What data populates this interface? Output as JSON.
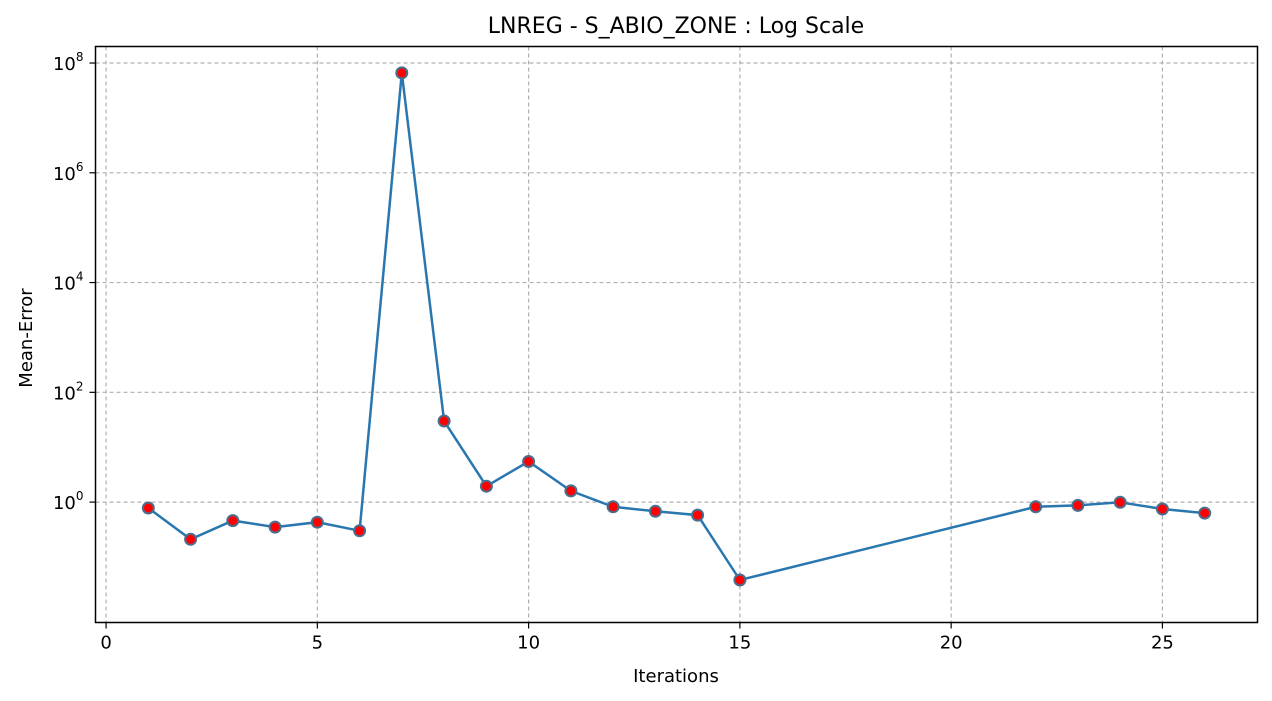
{
  "chart_data": {
    "type": "line",
    "title": "LNREG - S_ABIO_ZONE : Log Scale",
    "xlabel": "Iterations",
    "ylabel": "Mean-Error",
    "yscale": "log",
    "grid": true,
    "xlim": [
      -0.25,
      27.25
    ],
    "ylim": [
      0.0064,
      200000000
    ],
    "x_ticks": [
      {
        "value": 0,
        "label": "0"
      },
      {
        "value": 5,
        "label": "5"
      },
      {
        "value": 10,
        "label": "10"
      },
      {
        "value": 15,
        "label": "15"
      },
      {
        "value": 20,
        "label": "20"
      },
      {
        "value": 25,
        "label": "25"
      }
    ],
    "y_ticks": [
      {
        "value": 1,
        "base": "10",
        "exp": "0"
      },
      {
        "value": 100,
        "base": "10",
        "exp": "2"
      },
      {
        "value": 10000,
        "base": "10",
        "exp": "4"
      },
      {
        "value": 1000000,
        "base": "10",
        "exp": "6"
      },
      {
        "value": 100000000,
        "base": "10",
        "exp": "8"
      }
    ],
    "colors": {
      "line": "#2a77b0",
      "marker_fill": "#ff0000",
      "marker_edge": "#4a6e8e"
    },
    "series": [
      {
        "x": [
          1,
          2,
          3,
          4,
          5,
          6,
          7,
          8,
          9,
          10,
          11,
          12,
          13,
          14,
          15,
          22,
          23,
          24,
          25,
          26
        ],
        "y": [
          0.78,
          0.21,
          0.46,
          0.35,
          0.43,
          0.3,
          66000000,
          30,
          1.95,
          5.5,
          1.6,
          0.82,
          0.68,
          0.58,
          0.038,
          0.82,
          0.87,
          0.99,
          0.75,
          0.63
        ]
      }
    ]
  }
}
